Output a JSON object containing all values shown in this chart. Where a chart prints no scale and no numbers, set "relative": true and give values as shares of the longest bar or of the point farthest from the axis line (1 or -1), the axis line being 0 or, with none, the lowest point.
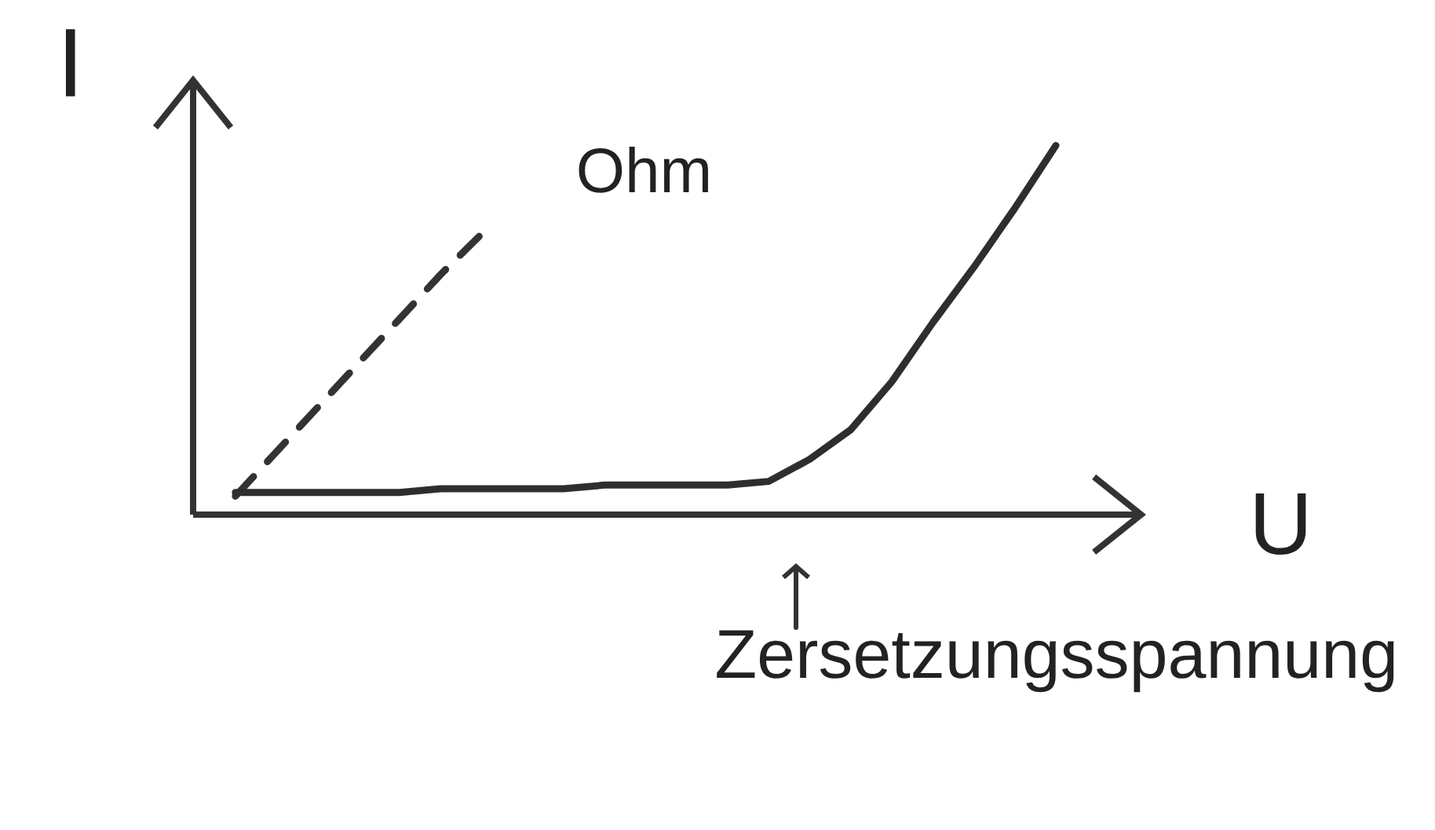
{
  "chart_data": {
    "type": "line",
    "relative": true,
    "xlabel": "U",
    "ylabel": "I",
    "categories": [
      null,
      null,
      null,
      null,
      null,
      null,
      null,
      null,
      null,
      null,
      null,
      null,
      null,
      null,
      null,
      null,
      null,
      null,
      null,
      null,
      null
    ],
    "series": [
      {
        "name": "Ohm",
        "color": "#333333",
        "line_style": "dashed",
        "values": [
          0.05,
          0.17,
          0.29,
          0.41,
          0.53,
          0.65,
          0.76,
          null,
          null,
          null,
          null,
          null,
          null,
          null,
          null,
          null,
          null,
          null,
          null,
          null,
          null
        ]
      },
      {
        "color": "#2e2e2e",
        "line_style": "solid",
        "values": [
          0.06,
          0.06,
          0.06,
          0.06,
          0.06,
          0.07,
          0.07,
          0.07,
          0.07,
          0.08,
          0.08,
          0.08,
          0.08,
          0.09,
          0.15,
          0.23,
          0.36,
          0.52,
          0.67,
          0.83,
          1
        ]
      }
    ],
    "annotations": [
      "Zersetzungsspannung"
    ],
    "legend": false
  }
}
